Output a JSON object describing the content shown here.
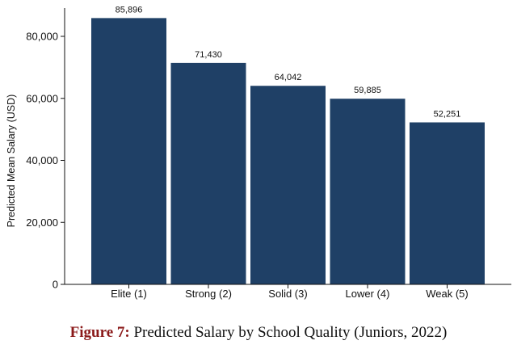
{
  "chart_data": {
    "type": "bar",
    "categories": [
      "Elite (1)",
      "Strong (2)",
      "Solid (3)",
      "Lower (4)",
      "Weak (5)"
    ],
    "values": [
      85896,
      71430,
      64042,
      59885,
      52251
    ],
    "value_labels": [
      "85,896",
      "71,430",
      "64,042",
      "59,885",
      "52,251"
    ],
    "ylabel": "Predicted Mean Salary (USD)",
    "xlabel": "",
    "ylim": [
      0,
      90000
    ],
    "yticks": [
      0,
      20000,
      40000,
      60000,
      80000
    ],
    "ytick_labels": [
      "0",
      "20,000",
      "40,000",
      "60,000",
      "80,000"
    ],
    "bar_color": "#1f4066",
    "grid": false,
    "legend": "none"
  },
  "caption": {
    "label": "Figure 7:",
    "text": "Predicted Salary by School Quality (Juniors, 2022)",
    "label_color": "#8b1a1a"
  }
}
